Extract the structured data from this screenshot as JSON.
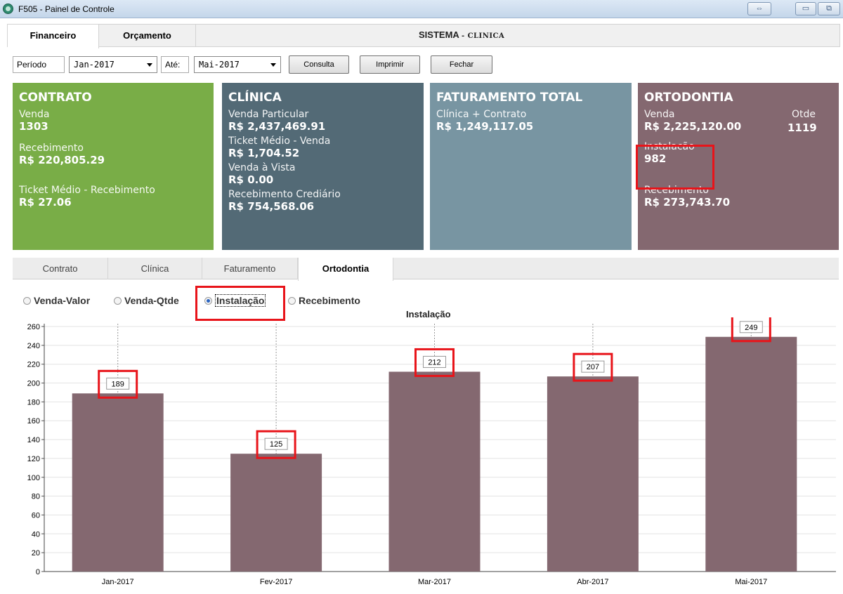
{
  "window": {
    "title": "F505 - Painel de Controle",
    "colors": {
      "titlebar": "#c4d6ea"
    }
  },
  "top_tabs": [
    {
      "label": "Financeiro",
      "active": true
    },
    {
      "label": "Orçamento",
      "active": false
    }
  ],
  "system": {
    "title": "SISTEMA",
    "subtitle": "- CLINICA"
  },
  "filters": {
    "period_label": "Período",
    "from_value": "Jan-2017",
    "until_label": "Até:",
    "to_value": "Mai-2017",
    "buttons": {
      "consulta": "Consulta",
      "imprimir": "Imprimir",
      "fechar": "Fechar"
    }
  },
  "cards": {
    "contrato": {
      "title": "CONTRATO",
      "venda_label": "Venda",
      "venda_value": "1303",
      "recebimento_label": "Recebimento",
      "recebimento_value": "R$ 220,805.29",
      "ticket_label": "Ticket Médio - Recebimento",
      "ticket_value": "R$ 27.06",
      "color": "#79ad47"
    },
    "clinica": {
      "title": "CLÍNICA",
      "venda_label": "Venda Particular",
      "venda_value": "R$ 2,437,469.91",
      "ticket_label": "Ticket Médio - Venda",
      "ticket_value": "R$ 1,704.52",
      "vista_label": "Venda à Vista",
      "vista_value": "R$ 0.00",
      "crediario_label": "Recebimento Crediário",
      "crediario_value": "R$ 754,568.06",
      "color": "#536a76"
    },
    "faturamento": {
      "title": "FATURAMENTO TOTAL",
      "label": "Clínica + Contrato",
      "value": "R$ 1,249,117.05",
      "color": "#7895a2"
    },
    "ortodontia": {
      "title": "ORTODONTIA",
      "venda_label": "Venda",
      "venda_value": "R$ 2,225,120.00",
      "qtde_label": "Otde",
      "qtde_value": "1119",
      "instalacao_label": "Instalacão",
      "instalacao_value": "982",
      "recebimento_label": "Recebimento",
      "recebimento_value": "R$ 273,743.70",
      "color": "#846870"
    }
  },
  "sub_tabs": [
    {
      "label": "Contrato",
      "active": false
    },
    {
      "label": "Clínica",
      "active": false
    },
    {
      "label": "Faturamento",
      "active": false
    },
    {
      "label": "Ortodontia",
      "active": true
    }
  ],
  "radios": [
    {
      "label": "Venda-Valor",
      "checked": false
    },
    {
      "label": "Venda-Qtde",
      "checked": false
    },
    {
      "label": "Instalação",
      "checked": true
    },
    {
      "label": "Recebimento",
      "checked": false
    }
  ],
  "highlight_color": "#e8141a",
  "chart_data": {
    "type": "bar",
    "title": "Instalação",
    "categories": [
      "Jan-2017",
      "Fev-2017",
      "Mar-2017",
      "Abr-2017",
      "Mai-2017"
    ],
    "values": [
      189,
      125,
      212,
      207,
      249
    ],
    "ylim": [
      0,
      260
    ],
    "yticks": [
      0,
      20,
      40,
      60,
      80,
      100,
      120,
      140,
      160,
      180,
      200,
      220,
      240,
      260
    ],
    "grid": true,
    "bar_color": "#846870",
    "data_labels": true
  }
}
